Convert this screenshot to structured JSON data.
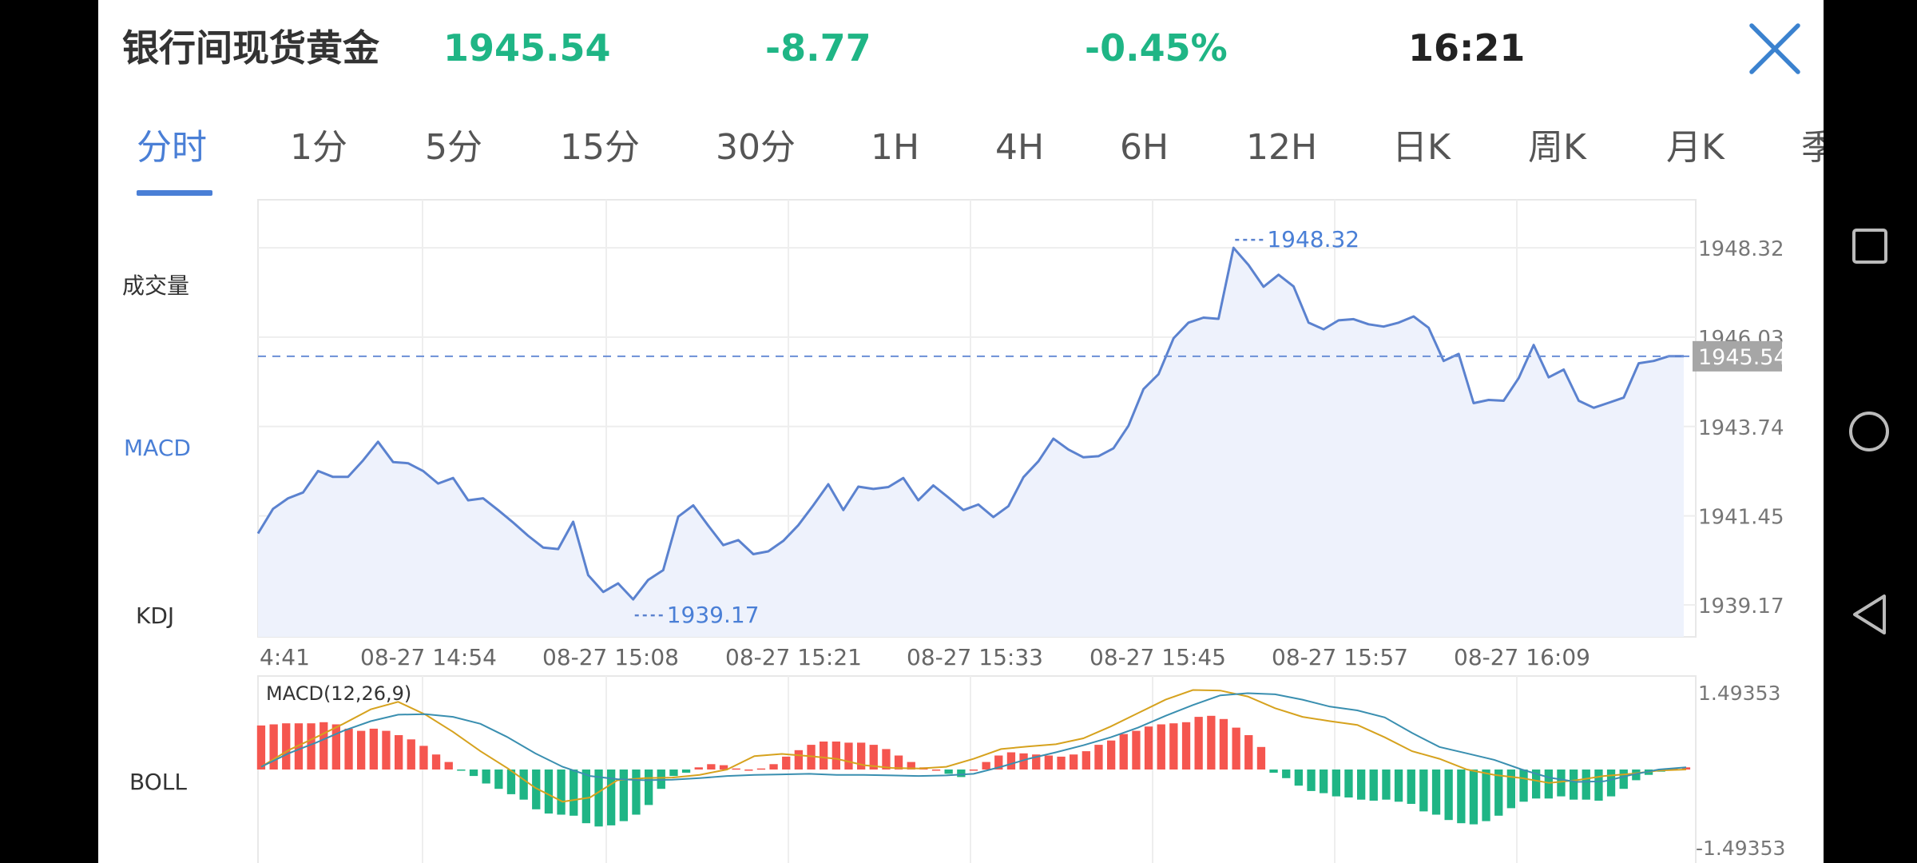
{
  "header": {
    "title": "银行间现货黄金",
    "price": "1945.54",
    "change": "-8.77",
    "change_pct": "-0.45%",
    "time": "16:21"
  },
  "tabs": [
    {
      "label": "分时",
      "active": true
    },
    {
      "label": "1分"
    },
    {
      "label": "5分"
    },
    {
      "label": "15分"
    },
    {
      "label": "30分"
    },
    {
      "label": "1H"
    },
    {
      "label": "4H"
    },
    {
      "label": "6H"
    },
    {
      "label": "12H"
    },
    {
      "label": "日K"
    },
    {
      "label": "周K"
    },
    {
      "label": "月K"
    },
    {
      "label": "季"
    }
  ],
  "side_labels": {
    "volume": "成交量",
    "macd": "MACD",
    "kdj": "KDJ",
    "boll": "BOLL"
  },
  "icons": {
    "close": "close-icon",
    "recents": "square-icon",
    "home": "circle-icon",
    "back": "triangle-back-icon"
  },
  "colors": {
    "accent": "#4a7fd6",
    "up": "#f5564f",
    "down": "#1fb585",
    "line": "#5b82cf",
    "fill": "#eef2fc",
    "dif": "#3a8fb0",
    "dea": "#d6a21e"
  },
  "chart_data": [
    {
      "type": "area",
      "title": "",
      "current_price_label": "1945.54",
      "current_price": 1945.54,
      "y_ticks": [
        "1948.32",
        "1946.03",
        "1943.74",
        "1941.45",
        "1939.17"
      ],
      "ylim": [
        1938.35,
        1949.55
      ],
      "x_ticks": [
        "4:41",
        "08-27 14:54",
        "08-27 15:08",
        "08-27 15:21",
        "08-27 15:33",
        "08-27 15:45",
        "08-27 15:57",
        "08-27 16:09"
      ],
      "annotations": [
        {
          "label": "1948.32",
          "type": "max"
        },
        {
          "label": "1939.17",
          "type": "min"
        }
      ],
      "series": [
        {
          "values": [
            1941.0,
            1941.63,
            1941.9,
            1942.05,
            1942.6,
            1942.45,
            1942.45,
            1942.87,
            1943.35,
            1942.83,
            1942.8,
            1942.6,
            1942.28,
            1942.42,
            1941.85,
            1941.9,
            1941.6,
            1941.28,
            1940.94,
            1940.64,
            1940.6,
            1941.3,
            1939.93,
            1939.5,
            1939.72,
            1939.31,
            1939.81,
            1940.06,
            1941.43,
            1941.72,
            1941.2,
            1940.7,
            1940.83,
            1940.47,
            1940.54,
            1940.81,
            1941.21,
            1941.72,
            1942.26,
            1941.6,
            1942.2,
            1942.14,
            1942.19,
            1942.42,
            1941.85,
            1942.23,
            1941.92,
            1941.6,
            1941.74,
            1941.42,
            1941.7,
            1942.44,
            1942.85,
            1943.43,
            1943.15,
            1942.95,
            1942.98,
            1943.18,
            1943.76,
            1944.7,
            1945.08,
            1946.0,
            1946.4,
            1946.53,
            1946.5,
            1948.32,
            1947.88,
            1947.32,
            1947.63,
            1947.33,
            1946.4,
            1946.23,
            1946.46,
            1946.49,
            1946.36,
            1946.3,
            1946.4,
            1946.56,
            1946.27,
            1945.42,
            1945.6,
            1944.34,
            1944.42,
            1944.4,
            1944.98,
            1945.83,
            1945.0,
            1945.2,
            1944.4,
            1944.22,
            1944.35,
            1944.48,
            1945.36,
            1945.42,
            1945.54,
            1945.54
          ]
        }
      ]
    },
    {
      "type": "bar",
      "title": "MACD(12,26,9)",
      "y_ticks": [
        "1.49353",
        "-1.49353"
      ],
      "ylim": [
        -1.74,
        1.74
      ],
      "series": [
        {
          "name": "MACD",
          "values": [
            0.82,
            0.84,
            0.86,
            0.86,
            0.86,
            0.88,
            0.84,
            0.76,
            0.72,
            0.76,
            0.72,
            0.64,
            0.56,
            0.44,
            0.28,
            0.14,
            -0.02,
            -0.12,
            -0.26,
            -0.36,
            -0.46,
            -0.56,
            -0.74,
            -0.82,
            -0.84,
            -0.86,
            -1.0,
            -1.06,
            -1.04,
            -0.96,
            -0.84,
            -0.66,
            -0.36,
            -0.12,
            -0.06,
            0.04,
            0.1,
            0.08,
            0.02,
            0.0,
            0.02,
            0.1,
            0.24,
            0.36,
            0.46,
            0.52,
            0.52,
            0.5,
            0.5,
            0.46,
            0.38,
            0.26,
            0.14,
            0.04,
            0.0,
            -0.08,
            -0.14,
            0.0,
            0.14,
            0.26,
            0.32,
            0.3,
            0.28,
            0.26,
            0.24,
            0.28,
            0.34,
            0.46,
            0.54,
            0.66,
            0.72,
            0.8,
            0.84,
            0.86,
            0.88,
            0.98,
            1.0,
            0.94,
            0.78,
            0.64,
            0.42,
            -0.06,
            -0.16,
            -0.3,
            -0.4,
            -0.44,
            -0.5,
            -0.52,
            -0.56,
            -0.58,
            -0.56,
            -0.6,
            -0.64,
            -0.78,
            -0.84,
            -0.94,
            -1.0,
            -1.02,
            -0.96,
            -0.86,
            -0.72,
            -0.6,
            -0.54,
            -0.54,
            -0.5,
            -0.56,
            -0.56,
            -0.58,
            -0.5,
            -0.36,
            -0.2,
            -0.1,
            -0.04,
            0.02,
            0.04
          ]
        },
        {
          "name": "DIF",
          "values": [
            0.05,
            0.3,
            0.5,
            0.72,
            0.9,
            1.02,
            1.03,
            0.98,
            0.85,
            0.6,
            0.3,
            0.05,
            -0.12,
            -0.18,
            -0.2,
            -0.19,
            -0.16,
            -0.12,
            -0.1,
            -0.09,
            -0.08,
            -0.1,
            -0.1,
            -0.11,
            -0.12,
            -0.11,
            -0.08,
            0.05,
            0.2,
            0.32,
            0.45,
            0.6,
            0.78,
            1.0,
            1.2,
            1.38,
            1.42,
            1.4,
            1.3,
            1.17,
            1.1,
            0.97,
            0.68,
            0.42,
            0.3,
            0.18,
            0.0,
            -0.15,
            -0.23,
            -0.22,
            -0.1,
            0.0,
            0.04
          ]
        },
        {
          "name": "DEA",
          "values": [
            0.05,
            0.36,
            0.6,
            0.85,
            1.12,
            1.26,
            1.02,
            0.7,
            0.34,
            0.02,
            -0.34,
            -0.6,
            -0.52,
            -0.2,
            -0.16,
            -0.15,
            -0.1,
            0.0,
            0.25,
            0.29,
            0.25,
            0.2,
            0.08,
            0.03,
            0.02,
            0.05,
            0.2,
            0.38,
            0.43,
            0.47,
            0.58,
            0.8,
            1.05,
            1.3,
            1.48,
            1.47,
            1.36,
            1.14,
            0.98,
            0.9,
            0.83,
            0.6,
            0.34,
            0.2,
            0.0,
            -0.1,
            -0.16,
            -0.25,
            -0.2,
            -0.12,
            -0.08,
            -0.02,
            0.0
          ]
        }
      ]
    }
  ]
}
